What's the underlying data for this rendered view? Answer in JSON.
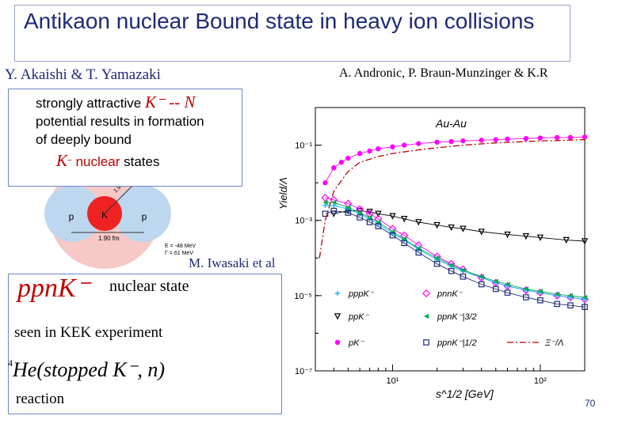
{
  "slide": {
    "title": "Antikaon nuclear Bound state in heavy ion collisions",
    "authors_left": "Y. Akaishi & T. Yamazaki",
    "authors_right": "A. Andronic, P. Braun-Munzinger & K.R",
    "box_line1_prefix": "strongly attractive",
    "box_math_kn": "K⁻ -- N",
    "box_line2": "potential results in formation",
    "box_line3": "of deeply bound",
    "box_math_k": "K",
    "box_line4_word": "nuclear",
    "box_line4_rest": "states",
    "iwasaki": "M. Iwasaki et al",
    "ppn_math": "ppnK⁻",
    "nuclear_state": "nuclear state",
    "kek": "seen in KEK experiment",
    "he_super": "4",
    "he_math": "He(stopped K⁻, n)",
    "reaction": "reaction",
    "page_number": "70"
  },
  "diagram": {
    "p_left": "p",
    "k_center": "K",
    "p_right": "p",
    "dist_top": "1.90 fm",
    "dist_bottom": "1.90 fm",
    "energy_b": "E = -48 MeV",
    "width_g": "Γ = 61 MeV"
  },
  "colors": {
    "title_blue": "#1e2a78",
    "red": "#c00000",
    "magenta": "#ff00ff"
  },
  "chart_data": {
    "type": "line",
    "title": "Au-Au",
    "xlabel": "s^1/2 [GeV]",
    "ylabel": "Yield/Λ",
    "x_scale": "log",
    "y_scale": "log",
    "xlim": [
      3,
      200
    ],
    "ylim": [
      1e-07,
      1
    ],
    "x_ticks": [
      "10¹",
      "10²"
    ],
    "y_ticks": [
      "10⁻¹",
      "10⁻³",
      "10⁻⁵",
      "10⁻⁷"
    ],
    "legend_position": "bottom",
    "series": [
      {
        "name": "pK⁻",
        "color": "#ff00ff",
        "marker": "filled-circle",
        "x": [
          3.5,
          4,
          4.5,
          5,
          6,
          7,
          8,
          10,
          12,
          15,
          20,
          25,
          30,
          40,
          50,
          60,
          80,
          100,
          130,
          160,
          200
        ],
        "y": [
          0.01,
          0.025,
          0.035,
          0.045,
          0.06,
          0.07,
          0.08,
          0.09,
          0.1,
          0.11,
          0.12,
          0.125,
          0.13,
          0.135,
          0.14,
          0.145,
          0.15,
          0.155,
          0.16,
          0.16,
          0.165
        ]
      },
      {
        "name": "ppK⁻",
        "color": "#000000",
        "marker": "open-triangle-down",
        "x": [
          4,
          5,
          6,
          7,
          8,
          10,
          12,
          15,
          20,
          25,
          30,
          40,
          60,
          80,
          100,
          150,
          200
        ],
        "y": [
          0.0015,
          0.0018,
          0.0018,
          0.0017,
          0.0015,
          0.0013,
          0.0011,
          0.0009,
          0.00075,
          0.00065,
          0.0006,
          0.0005,
          0.00042,
          0.00038,
          0.00035,
          0.0003,
          0.00028
        ]
      },
      {
        "name": "pnnK⁻",
        "color": "#ff00ff",
        "marker": "open-diamond",
        "x": [
          3.5,
          4,
          5,
          6,
          7,
          8,
          10,
          12,
          15,
          20,
          25,
          30,
          40,
          50,
          60,
          80,
          100,
          130,
          160,
          200
        ],
        "y": [
          0.004,
          0.0035,
          0.0028,
          0.002,
          0.0015,
          0.0011,
          0.0006,
          0.0004,
          0.00022,
          0.00011,
          7e-05,
          5e-05,
          3e-05,
          2.2e-05,
          1.8e-05,
          1.4e-05,
          1.2e-05,
          1e-05,
          9e-06,
          8e-06
        ]
      },
      {
        "name": "pppK⁻",
        "color": "#00c0ff",
        "marker": "plus",
        "x": [
          3.5,
          4,
          5,
          6,
          7,
          8,
          10,
          12,
          15,
          20,
          25,
          30,
          40,
          50,
          60,
          80,
          100,
          130,
          160,
          200
        ],
        "y": [
          0.0025,
          0.0025,
          0.002,
          0.0015,
          0.0011,
          0.0008,
          0.00045,
          0.0003,
          0.00017,
          9e-05,
          6e-05,
          4.5e-05,
          3e-05,
          2.2e-05,
          1.8e-05,
          1.4e-05,
          1.2e-05,
          1e-05,
          9e-06,
          8e-06
        ]
      },
      {
        "name": "ppnK⁻|3/2",
        "color": "#00b050",
        "marker": "filled-triangle-left",
        "x": [
          3.5,
          4,
          5,
          6,
          7,
          8,
          10,
          12,
          15,
          20,
          25,
          30,
          40,
          50,
          60,
          80,
          100,
          130,
          160,
          200
        ],
        "y": [
          0.003,
          0.003,
          0.0022,
          0.0016,
          0.0012,
          0.0009,
          0.0005,
          0.00032,
          0.00018,
          0.0001,
          6.5e-05,
          4.8e-05,
          3.2e-05,
          2.4e-05,
          2e-05,
          1.5e-05,
          1.3e-05,
          1.1e-05,
          1e-05,
          9e-06
        ]
      },
      {
        "name": "ppnK⁻|1/2",
        "color": "#1e2a78",
        "marker": "open-square",
        "x": [
          3.5,
          4,
          5,
          6,
          7,
          8,
          10,
          12,
          15,
          20,
          25,
          30,
          40,
          50,
          60,
          80,
          100,
          130,
          160,
          200
        ],
        "y": [
          0.0015,
          0.0018,
          0.0016,
          0.0012,
          0.0009,
          0.0007,
          0.0004,
          0.00025,
          0.00014,
          7e-05,
          4.5e-05,
          3.2e-05,
          2e-05,
          1.5e-05,
          1.2e-05,
          9e-06,
          7.5e-06,
          6e-06,
          5.5e-06,
          5e-06
        ]
      },
      {
        "name": "Ξ⁻/Λ",
        "color": "#c00000",
        "style": "dash-dot",
        "x": [
          3.2,
          3.5,
          4,
          5,
          6,
          8,
          10,
          15,
          20,
          30,
          50,
          80,
          100,
          150,
          200
        ],
        "y": [
          0.0001,
          0.001,
          0.006,
          0.02,
          0.035,
          0.05,
          0.06,
          0.075,
          0.085,
          0.1,
          0.115,
          0.125,
          0.13,
          0.135,
          0.14
        ]
      }
    ]
  }
}
